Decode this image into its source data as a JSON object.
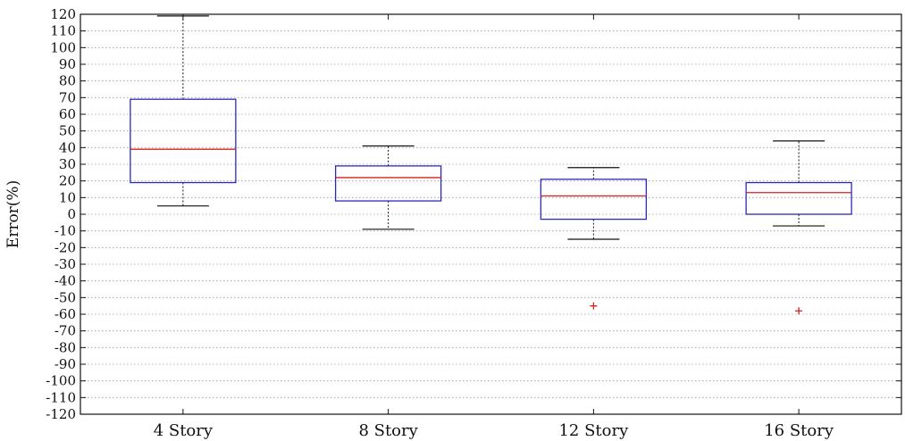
{
  "chart_data": {
    "type": "box",
    "title": "",
    "xlabel": "",
    "ylabel": "Error(%)",
    "ylim": [
      -120,
      120
    ],
    "yticks": [
      120,
      110,
      100,
      90,
      80,
      70,
      60,
      50,
      40,
      30,
      20,
      10,
      0,
      -10,
      -20,
      -30,
      -40,
      -50,
      -60,
      -70,
      -80,
      -90,
      -100,
      -110,
      -120
    ],
    "grid": "horizontal dotted",
    "categories": [
      "4 Story",
      "8 Story",
      "12 Story",
      "16 Story"
    ],
    "boxes": [
      {
        "category": "4 Story",
        "whisker_low": 5,
        "q1": 19,
        "median": 39,
        "q3": 69,
        "whisker_high": 119,
        "outliers": []
      },
      {
        "category": "8 Story",
        "whisker_low": -9,
        "q1": 8,
        "median": 22,
        "q3": 29,
        "whisker_high": 41,
        "outliers": []
      },
      {
        "category": "12 Story",
        "whisker_low": -15,
        "q1": -3,
        "median": 11,
        "q3": 21,
        "whisker_high": 28,
        "outliers": [
          -55
        ]
      },
      {
        "category": "16 Story",
        "whisker_low": -7,
        "q1": 0,
        "median": 13,
        "q3": 19,
        "whisker_high": 44,
        "outliers": [
          -58
        ]
      }
    ],
    "colors": {
      "box": "#2b2bb8",
      "median": "#d42020",
      "whisker": "#111111",
      "outlier": "#d42020",
      "grid": "#9a9a9a"
    }
  }
}
